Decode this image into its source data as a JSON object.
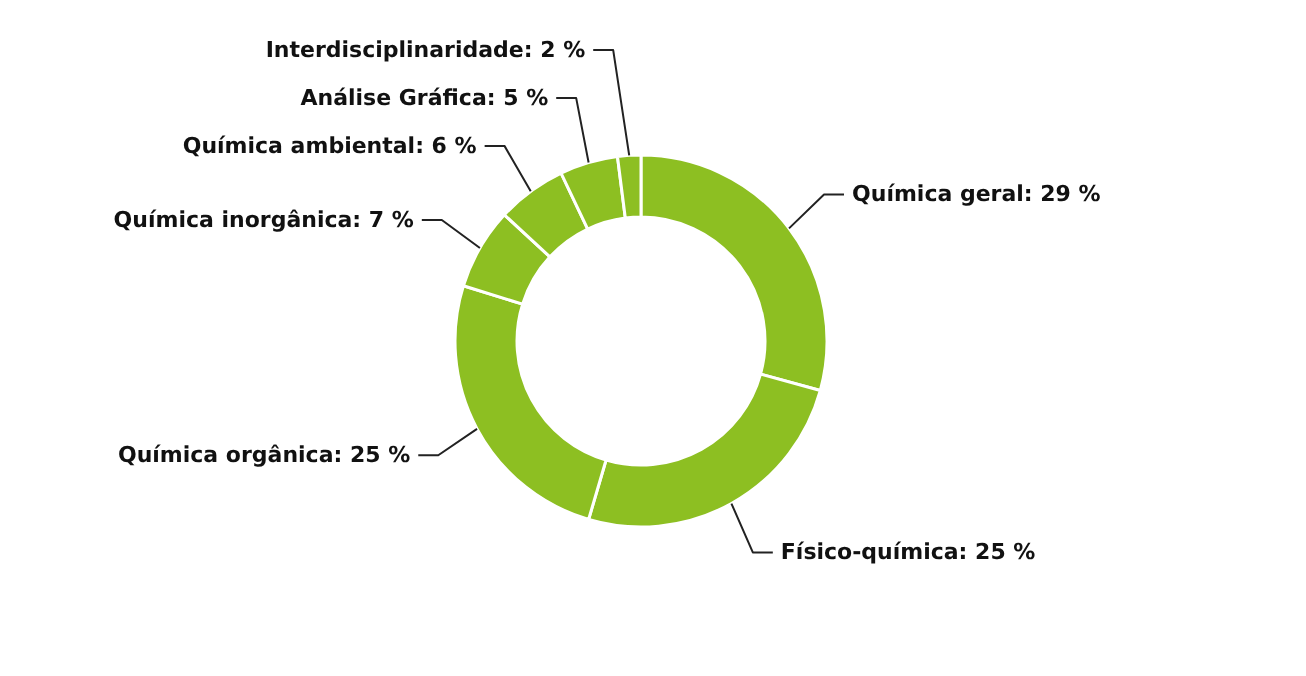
{
  "chart_data": {
    "type": "donut",
    "categories": [
      "Química geral",
      "Físico-química",
      "Química orgânica",
      "Química inorgânica",
      "Química ambiental",
      "Análise Gráfica",
      "Interdisciplinaridade"
    ],
    "values": [
      29,
      25,
      25,
      7,
      6,
      5,
      2
    ],
    "value_labels": [
      "29 %",
      "25 %",
      "25 %",
      "7 %",
      "6 %",
      "5 %",
      "2 %"
    ],
    "colors": [
      "#8dbf22",
      "#8dbf22",
      "#8dbf22",
      "#8dbf22",
      "#8dbf22",
      "#8dbf22",
      "#8dbf22"
    ]
  }
}
